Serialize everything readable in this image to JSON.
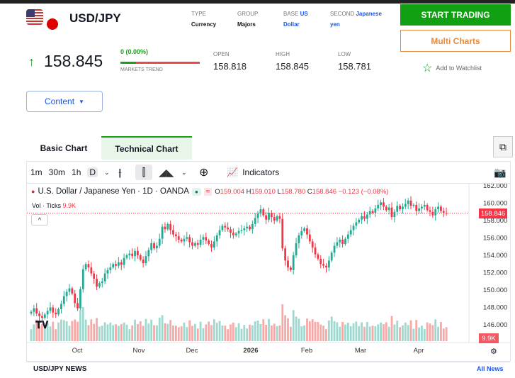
{
  "header": {
    "pair": "USD/JPY",
    "type_label": "TYPE",
    "type_value": "Currency",
    "group_label": "GROUP",
    "group_value": "Majors",
    "base_label": "BASE",
    "base_value_1": "US",
    "base_value_2": "Dollar",
    "second_label": "SECOND",
    "second_value_1": "Japanese",
    "second_value_2": "yen"
  },
  "buttons": {
    "start_trading": "START TRADING",
    "multi_charts": "Multi Charts",
    "watchlist": "Add to Watchlist",
    "content": "Content"
  },
  "quote": {
    "price": "158.845",
    "change": "0 (0.00%)",
    "trend_label": "MARKETS TREND",
    "trend_up_fraction": 0.2,
    "open_label": "OPEN",
    "open": "158.818",
    "high_label": "HIGH",
    "high": "158.845",
    "low_label": "LOW",
    "low": "158.781"
  },
  "tabs": [
    "Basic Chart",
    "Technical Chart"
  ],
  "toolbar": {
    "intervals": [
      "1m",
      "30m",
      "1h",
      "D"
    ],
    "indicators": "Indicators"
  },
  "legend": {
    "title": "U.S. Dollar / Japanese Yen · 1D · OANDA",
    "o_label": "O",
    "o": "159.004",
    "h_label": "H",
    "h": "159.010",
    "l_label": "L",
    "l": "158.780",
    "c_label": "C",
    "c": "158.846",
    "chg": "−0.123 (−0.08%)",
    "vol_label": "Vol · Ticks",
    "vol": "9.9K"
  },
  "colors": {
    "up": "#22ab94",
    "down": "#f23645",
    "vol_up": "#9ed9cf",
    "vol_down": "#f7a9a7",
    "accent": "#11a011"
  },
  "chart_data": {
    "type": "candlestick",
    "y_ticks": [
      "162.000",
      "160.000",
      "158.000",
      "156.000",
      "154.000",
      "152.000",
      "150.000",
      "148.000",
      "146.000"
    ],
    "ylim": [
      145.2,
      162
    ],
    "x_ticks": [
      "Oct",
      "Nov",
      "Dec",
      "2026",
      "Feb",
      "Mar",
      "Apr"
    ],
    "last_price_label": "158.846",
    "last_volume_label": "9.9K",
    "closes": [
      147.5,
      147.9,
      147.3,
      147.0,
      146.8,
      147.2,
      147.6,
      148.0,
      147.4,
      147.2,
      147.8,
      148.4,
      149.3,
      149.8,
      150.2,
      149.6,
      148.5,
      147.9,
      150.1,
      152.4,
      153.0,
      152.6,
      151.9,
      151.3,
      150.4,
      150.8,
      151.0,
      151.9,
      152.3,
      152.6,
      153.0,
      152.8,
      153.2,
      152.9,
      153.7,
      154.0,
      154.2,
      153.9,
      154.5,
      154.0,
      153.5,
      153.1,
      153.9,
      154.6,
      155.4,
      154.8,
      155.1,
      155.9,
      157.3,
      157.0,
      157.6,
      156.9,
      156.4,
      156.2,
      155.8,
      155.6,
      155.9,
      156.1,
      155.5,
      155.1,
      155.4,
      155.2,
      155.8,
      156.1,
      155.7,
      155.3,
      154.9,
      155.6,
      156.3,
      156.9,
      157.4,
      157.2,
      157.0,
      156.6,
      156.3,
      156.5,
      156.8,
      156.9,
      157.1,
      157.3,
      157.0,
      157.6,
      158.3,
      158.8,
      159.3,
      158.6,
      158.1,
      158.9,
      158.4,
      158.0,
      158.5,
      158.2,
      154.8,
      153.4,
      152.6,
      152.3,
      154.0,
      155.4,
      156.3,
      156.8,
      157.1,
      156.4,
      155.6,
      154.9,
      154.1,
      153.6,
      153.0,
      152.8,
      152.6,
      153.4,
      154.3,
      155.1,
      155.5,
      155.8,
      155.3,
      155.9,
      156.4,
      156.9,
      157.4,
      157.8,
      158.1,
      158.5,
      158.2,
      158.7,
      159.1,
      158.9,
      159.4,
      159.8,
      160.1,
      159.6,
      159.2,
      159.5,
      158.4,
      159.0,
      159.7,
      159.3,
      159.6,
      159.9,
      160.3,
      159.7,
      159.8,
      159.1,
      159.4,
      159.6,
      159.8,
      159.2,
      159.0,
      158.6,
      159.3,
      159.6,
      159.1,
      158.9,
      158.85
    ]
  },
  "news": {
    "title": "USD/JPY NEWS",
    "all": "All News"
  }
}
